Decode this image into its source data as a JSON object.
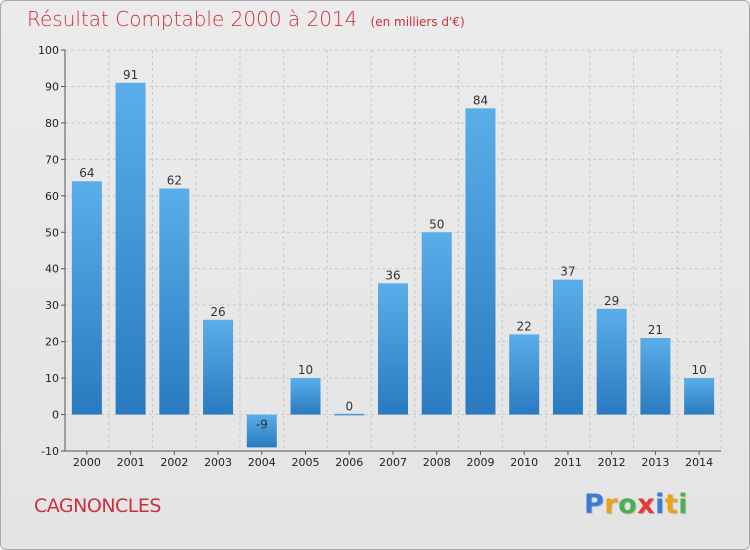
{
  "header": {
    "title": "Résultat Comptable 2000 à 2014",
    "unit": "(en milliers d'€)"
  },
  "footer": {
    "city": "CAGNONCLES",
    "logo_letters": [
      "P",
      "r",
      "o",
      "x",
      "i",
      "t",
      "i"
    ],
    "logo_colors": [
      "#3a7bd5",
      "#e8a317",
      "#4caf50",
      "#e53935",
      "#3a7bd5",
      "#e8a317",
      "#4caf50"
    ]
  },
  "chart_data": {
    "type": "bar",
    "title": "Résultat Comptable 2000 à 2014",
    "subtitle": "(en milliers d'€)",
    "categories": [
      "2000",
      "2001",
      "2002",
      "2003",
      "2004",
      "2005",
      "2006",
      "2007",
      "2008",
      "2009",
      "2010",
      "2011",
      "2012",
      "2013",
      "2014"
    ],
    "values": [
      64,
      91,
      62,
      26,
      -9,
      10,
      0,
      36,
      50,
      84,
      22,
      37,
      29,
      21,
      10
    ],
    "value_labels": [
      "64",
      "91",
      "62",
      "26",
      "-9",
      "10",
      "0",
      "36",
      "50",
      "84",
      "22",
      "37",
      "29",
      "21",
      "10"
    ],
    "yticks": [
      -10,
      0,
      10,
      20,
      30,
      40,
      50,
      60,
      70,
      80,
      90,
      100
    ],
    "ylim": [
      -10,
      100
    ],
    "grid": true,
    "colors": {
      "bar_top": "#5aaee8",
      "bar_bottom": "#2a7ac0",
      "grid": "#c8c8c8",
      "axis": "#555555"
    }
  }
}
